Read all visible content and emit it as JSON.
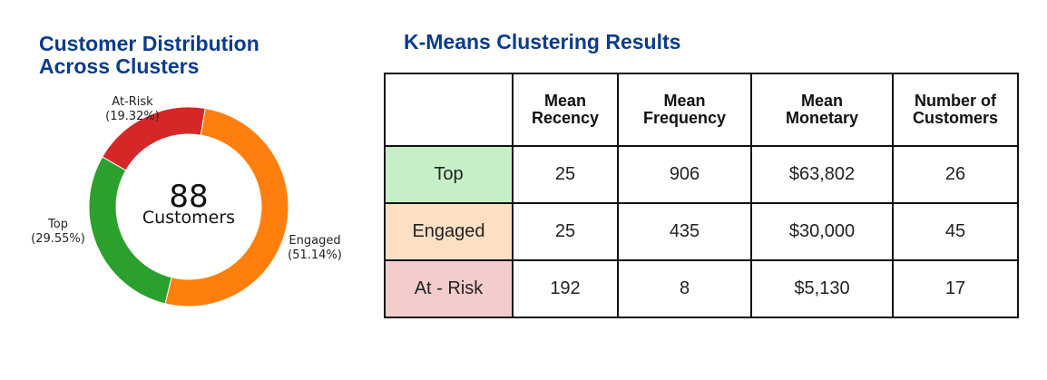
{
  "left_panel": {
    "title_line1": "Customer Distribution",
    "title_line2": "Across Clusters",
    "center_count": "88",
    "center_label": "Customers"
  },
  "right_panel": {
    "title": "K-Means Clustering Results"
  },
  "colors": {
    "title": "#0a3c8c",
    "top": "#2ca02c",
    "engaged": "#ff7f0e",
    "at_risk": "#d62728",
    "row_top_bg": "#c6efc8",
    "row_engaged_bg": "#fde0c4",
    "row_at_risk_bg": "#f5cccc"
  },
  "chart_data": [
    {
      "type": "pie",
      "variant": "donut",
      "title": "Customer Distribution Across Clusters",
      "center_text": [
        "88",
        "Customers"
      ],
      "slices": [
        {
          "label": "At-Risk",
          "percent": 19.32,
          "percent_text": "(19.32%)",
          "color": "#d62728"
        },
        {
          "label": "Engaged",
          "percent": 51.14,
          "percent_text": "(51.14%)",
          "color": "#ff7f0e"
        },
        {
          "label": "Top",
          "percent": 29.55,
          "percent_text": "(29.55%)",
          "color": "#2ca02c"
        }
      ]
    },
    {
      "type": "table",
      "title": "K-Means Clustering Results",
      "columns": [
        "",
        "Mean\nRecency",
        "Mean\nFrequency",
        "Mean\nMonetary",
        "Number of\nCustomers"
      ],
      "rows": [
        {
          "cluster": "Top",
          "recency": "25",
          "frequency": "906",
          "monetary": "$63,802",
          "customers": "26"
        },
        {
          "cluster": "Engaged",
          "recency": "25",
          "frequency": "435",
          "monetary": "$30,000",
          "customers": "45"
        },
        {
          "cluster": "At - Risk",
          "recency": "192",
          "frequency": "8",
          "monetary": "$5,130",
          "customers": "17"
        }
      ]
    }
  ],
  "table": {
    "headers": [
      {
        "line1": "Mean",
        "line2": "Recency"
      },
      {
        "line1": "Mean",
        "line2": "Frequency"
      },
      {
        "line1": "Mean",
        "line2": "Monetary"
      },
      {
        "line1": "Number of",
        "line2": "Customers"
      }
    ]
  }
}
